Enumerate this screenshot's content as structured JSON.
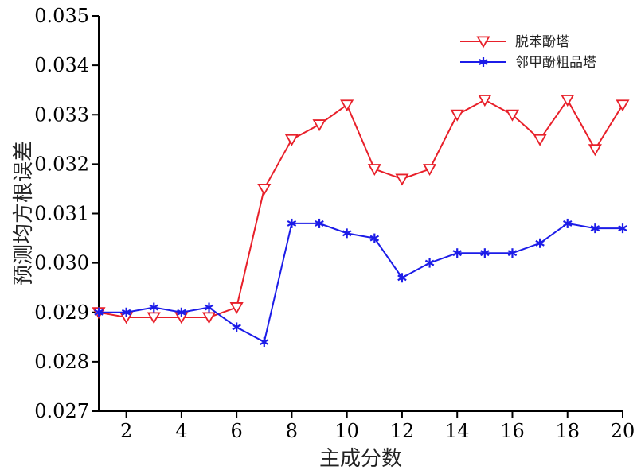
{
  "chart_data": {
    "type": "line",
    "xlabel": "主成分数",
    "ylabel": "预测均方根误差",
    "x": [
      1,
      2,
      3,
      4,
      5,
      6,
      7,
      8,
      9,
      10,
      11,
      12,
      13,
      14,
      15,
      16,
      17,
      18,
      19,
      20
    ],
    "xlim": [
      1,
      20
    ],
    "ylim": [
      0.027,
      0.035
    ],
    "xticks": [
      2,
      4,
      6,
      8,
      10,
      12,
      14,
      16,
      18,
      20
    ],
    "xtick_labels": [
      "2",
      "4",
      "6",
      "8",
      "10",
      "12",
      "14",
      "16",
      "18",
      "20"
    ],
    "yticks": [
      0.027,
      0.028,
      0.029,
      0.03,
      0.031,
      0.032,
      0.033,
      0.034,
      0.035
    ],
    "ytick_labels": [
      "0.027",
      "0.028",
      "0.029",
      "0.030",
      "0.031",
      "0.032",
      "0.033",
      "0.034",
      "0.035"
    ],
    "grid": false,
    "legend_position": "top-right",
    "series": [
      {
        "name": "脱苯酚塔",
        "color": "#e8202a",
        "marker": "triangle-down-open",
        "values": [
          0.029,
          0.0289,
          0.0289,
          0.0289,
          0.0289,
          0.0291,
          0.0315,
          0.0325,
          0.0328,
          0.0332,
          0.0319,
          0.0317,
          0.0319,
          0.033,
          0.0333,
          0.033,
          0.0325,
          0.0333,
          0.0323,
          0.0332
        ]
      },
      {
        "name": "邻甲酚粗品塔",
        "color": "#1c1ce8",
        "marker": "asterisk",
        "values": [
          0.029,
          0.029,
          0.0291,
          0.029,
          0.0291,
          0.0287,
          0.0284,
          0.0308,
          0.0308,
          0.0306,
          0.0305,
          0.0297,
          0.03,
          0.0302,
          0.0302,
          0.0302,
          0.0304,
          0.0308,
          0.0307,
          0.0307
        ]
      }
    ]
  }
}
